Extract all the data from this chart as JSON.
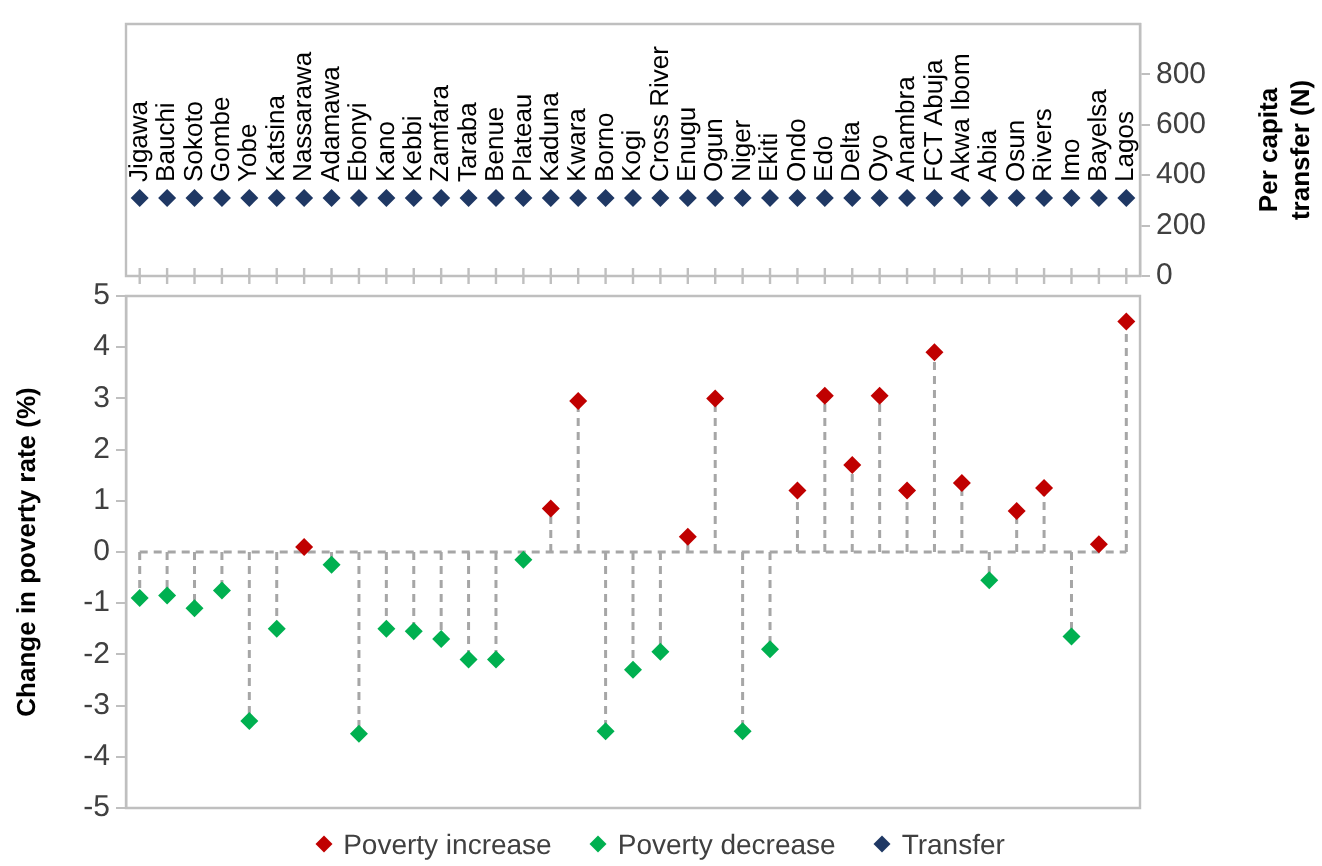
{
  "chart_data": [
    {
      "type": "scatter",
      "categories": [
        "Jigawa",
        "Bauchi",
        "Sokoto",
        "Gombe",
        "Yobe",
        "Katsina",
        "Nassarawa",
        "Adamawa",
        "Ebonyi",
        "Kano",
        "Kebbi",
        "Zamfara",
        "Taraba",
        "Benue",
        "Plateau",
        "Kaduna",
        "Kwara",
        "Borno",
        "Kogi",
        "Cross River",
        "Enugu",
        "Ogun",
        "Niger",
        "Ekiti",
        "Ondo",
        "Edo",
        "Delta",
        "Oyo",
        "Anambra",
        "FCT Abuja",
        "Akwa Ibom",
        "Abia",
        "Osun",
        "Rivers",
        "Imo",
        "Bayelsa",
        "Lagos"
      ],
      "series": [
        {
          "name": "Transfer",
          "color": "#1f3864",
          "values": [
            310,
            310,
            310,
            310,
            310,
            310,
            310,
            310,
            310,
            310,
            310,
            310,
            310,
            310,
            310,
            310,
            310,
            310,
            310,
            310,
            310,
            310,
            310,
            310,
            310,
            310,
            310,
            310,
            310,
            310,
            310,
            310,
            310,
            310,
            310,
            310,
            310
          ]
        }
      ],
      "ylabel": "Per capita transfer (N)",
      "ylim": [
        0,
        1000
      ],
      "yticks": [
        0,
        200,
        400,
        600,
        800
      ],
      "marker": "diamond",
      "grid": false,
      "legend": "bottom"
    },
    {
      "type": "lollipop",
      "categories": [
        null,
        null,
        null,
        null,
        null,
        null,
        null,
        null,
        null,
        null,
        null,
        null,
        null,
        null,
        null,
        null,
        null,
        null,
        null,
        null,
        null,
        null,
        null,
        null,
        null,
        null,
        null,
        null,
        null,
        null,
        null,
        null,
        null,
        null,
        null,
        null,
        null
      ],
      "series": [
        {
          "name": "Poverty increase",
          "color": "#c00000",
          "values": [
            null,
            null,
            null,
            null,
            null,
            null,
            0.1,
            null,
            null,
            null,
            null,
            null,
            null,
            null,
            null,
            0.85,
            2.95,
            null,
            null,
            null,
            0.3,
            3.0,
            null,
            null,
            1.2,
            3.05,
            1.7,
            3.05,
            1.2,
            3.9,
            1.35,
            null,
            0.8,
            1.25,
            null,
            0.15,
            4.5
          ]
        },
        {
          "name": "Poverty decrease",
          "color": "#00b050",
          "values": [
            -0.9,
            -0.85,
            -1.1,
            -0.75,
            -3.3,
            -1.5,
            null,
            -0.25,
            -3.55,
            -1.5,
            -1.55,
            -1.7,
            -2.1,
            -2.1,
            -0.15,
            null,
            null,
            -3.5,
            -2.3,
            -1.95,
            null,
            null,
            -3.5,
            -1.9,
            null,
            null,
            null,
            null,
            null,
            null,
            null,
            -0.55,
            null,
            null,
            -1.65,
            null,
            null
          ]
        }
      ],
      "ylabel": "Change in poverty rate (%)",
      "ylim": [
        -5,
        5
      ],
      "yticks": [
        -5,
        -4,
        -3,
        -2,
        -1,
        0,
        1,
        2,
        3,
        4,
        5
      ],
      "ref_lines": [
        {
          "axis": "y",
          "value": 0,
          "label": null,
          "color": "#a6a6a6",
          "line_style": "dashed"
        }
      ],
      "marker": "diamond",
      "line_style": "dashed",
      "grid": false,
      "legend": "bottom",
      "tick_labels": "y"
    }
  ]
}
